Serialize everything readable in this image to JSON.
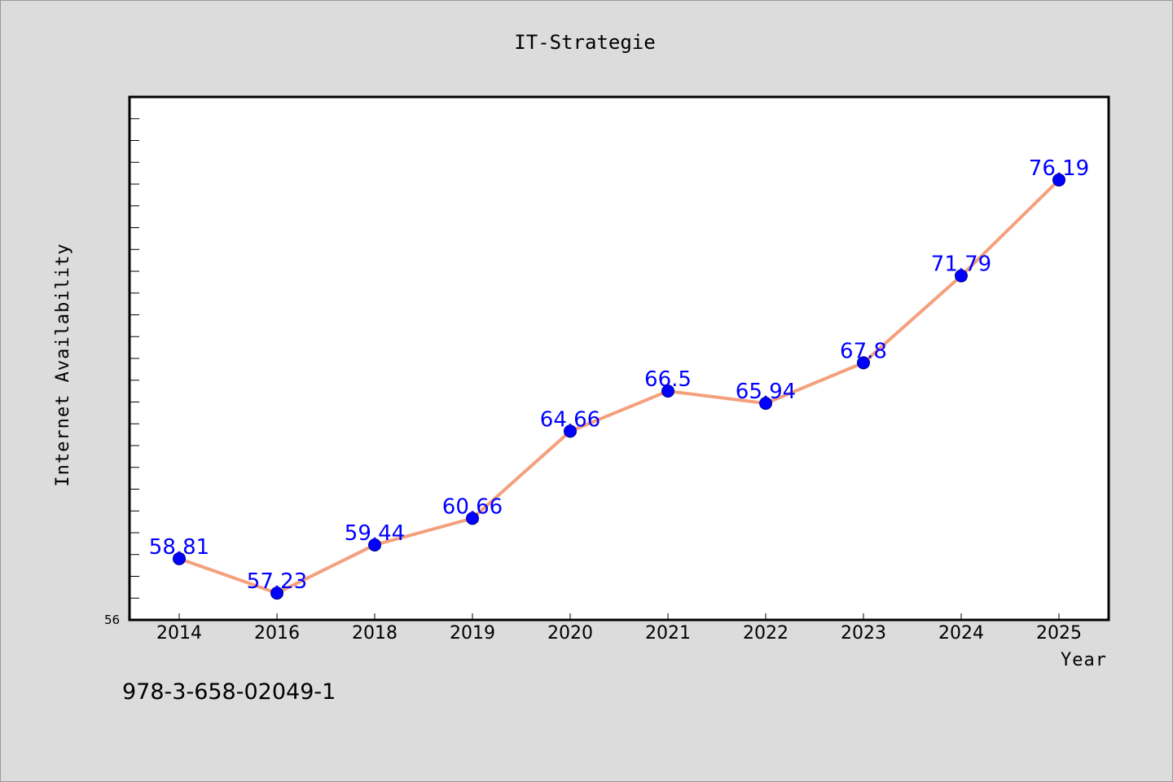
{
  "chart_data": {
    "type": "line",
    "title": "IT-Strategie",
    "xlabel": "Year",
    "ylabel": "Internet Availability",
    "categories": [
      "2014",
      "2016",
      "2018",
      "2019",
      "2020",
      "2021",
      "2022",
      "2023",
      "2024",
      "2025"
    ],
    "series": [
      {
        "values": [
          58.81,
          57.23,
          59.44,
          60.66,
          64.66,
          66.5,
          65.94,
          67.8,
          71.79,
          76.19
        ],
        "labels": [
          "58.81",
          "57.23",
          "59.44",
          "60.66",
          "64.66",
          "66.5",
          "65.94",
          "67.8",
          "71.79",
          "76.19"
        ]
      }
    ],
    "ylim": [
      56,
      80
    ],
    "y_min_label": "56",
    "grid": false,
    "line_color": "#f4a07c",
    "marker_color": "#0000ff",
    "label_color": "#0000ff"
  },
  "footer": {
    "id_text": "978-3-658-02049-1"
  }
}
